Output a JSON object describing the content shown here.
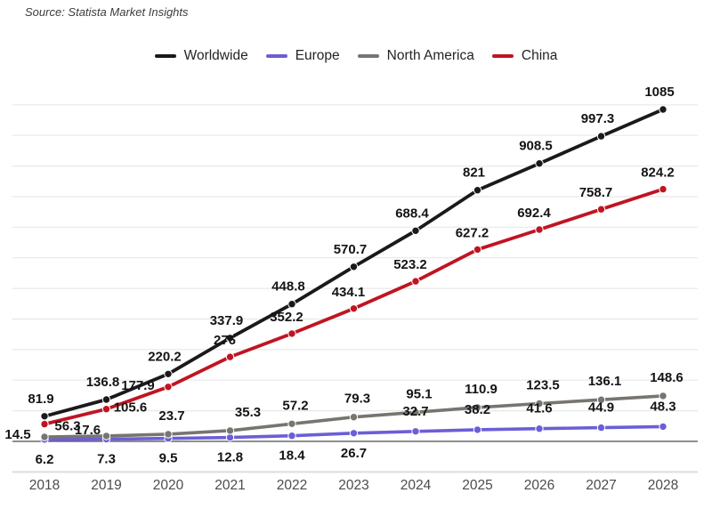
{
  "source": {
    "text": "Source: Statista Market Insights"
  },
  "chart_data": {
    "type": "line",
    "title": "",
    "xlabel": "",
    "ylabel": "",
    "x": [
      2018,
      2019,
      2020,
      2021,
      2022,
      2023,
      2024,
      2025,
      2026,
      2027,
      2028
    ],
    "series": [
      {
        "id": "worldwide",
        "name": "Worldwide",
        "color": "#1a1a1a",
        "values": [
          81.9,
          136.8,
          220.2,
          337.9,
          448.8,
          570.7,
          688.4,
          821,
          908.5,
          997.3,
          1085
        ]
      },
      {
        "id": "europe",
        "name": "Europe",
        "color": "#6c5ed6",
        "values": [
          6.2,
          7.3,
          9.5,
          12.8,
          18.4,
          26.7,
          32.7,
          38.2,
          41.6,
          44.9,
          48.3
        ]
      },
      {
        "id": "north-america",
        "name": "North America",
        "color": "#787470",
        "values": [
          14.5,
          17.6,
          23.7,
          35.3,
          57.2,
          79.3,
          95.1,
          110.9,
          123.5,
          136.1,
          148.6
        ]
      },
      {
        "id": "china",
        "name": "China",
        "color": "#c01423",
        "values": [
          56.3,
          105.6,
          177.9,
          276,
          352.2,
          434.1,
          523.2,
          627.2,
          692.4,
          758.7,
          824.2
        ]
      }
    ],
    "ylim": [
      -100,
      1100
    ],
    "grid_step": 100,
    "grid": true,
    "legend_position": "top",
    "grid_color": "#e8e8e8",
    "axis_color": "#6a6a6a",
    "plot_border_color": "#dedede",
    "label_color": "#141414",
    "tick_label_color": "#4c4c4c"
  }
}
